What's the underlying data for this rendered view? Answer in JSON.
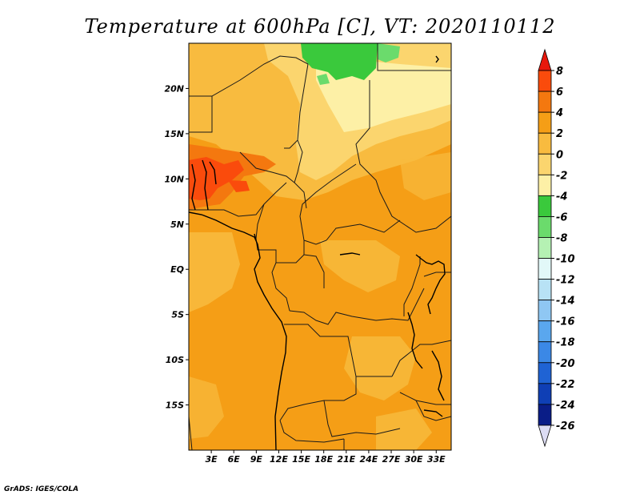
{
  "title": "Temperature at 600hPa [C], VT: 2020110112",
  "credit": "GrADS: IGES/COLA",
  "map": {
    "lat_range": [
      -20,
      25
    ],
    "lon_range": [
      0,
      35
    ],
    "lat_ticks": [
      {
        "v": 20,
        "label": "20N"
      },
      {
        "v": 15,
        "label": "15N"
      },
      {
        "v": 10,
        "label": "10N"
      },
      {
        "v": 5,
        "label": "5N"
      },
      {
        "v": 0,
        "label": "EQ"
      },
      {
        "v": -5,
        "label": "5S"
      },
      {
        "v": -10,
        "label": "10S"
      },
      {
        "v": -15,
        "label": "15S"
      }
    ],
    "lon_ticks": [
      {
        "v": 3,
        "label": "3E"
      },
      {
        "v": 6,
        "label": "6E"
      },
      {
        "v": 9,
        "label": "9E"
      },
      {
        "v": 12,
        "label": "12E"
      },
      {
        "v": 15,
        "label": "15E"
      },
      {
        "v": 18,
        "label": "18E"
      },
      {
        "v": 21,
        "label": "21E"
      },
      {
        "v": 24,
        "label": "24E"
      },
      {
        "v": 27,
        "label": "27E"
      },
      {
        "v": 30,
        "label": "30E"
      },
      {
        "v": 33,
        "label": "33E"
      }
    ]
  },
  "colorbar": {
    "labels": [
      "8",
      "6",
      "4",
      "2",
      "0",
      "-2",
      "-4",
      "-6",
      "-8",
      "-10",
      "-12",
      "-14",
      "-16",
      "-18",
      "-20",
      "-22",
      "-24",
      "-26"
    ],
    "colors": [
      "#e8180c",
      "#fa4b0c",
      "#f4780f",
      "#f59e16",
      "#f8bb3f",
      "#fbd56e",
      "#fdf0a6",
      "#3ac93c",
      "#6bdb6c",
      "#b5f1b3",
      "#e2f8f8",
      "#b8e2f5",
      "#8fc7f3",
      "#5aa7ee",
      "#3b88e6",
      "#1f63d4",
      "#0f3fb5",
      "#0a1d87",
      "#dcdcf3"
    ]
  }
}
